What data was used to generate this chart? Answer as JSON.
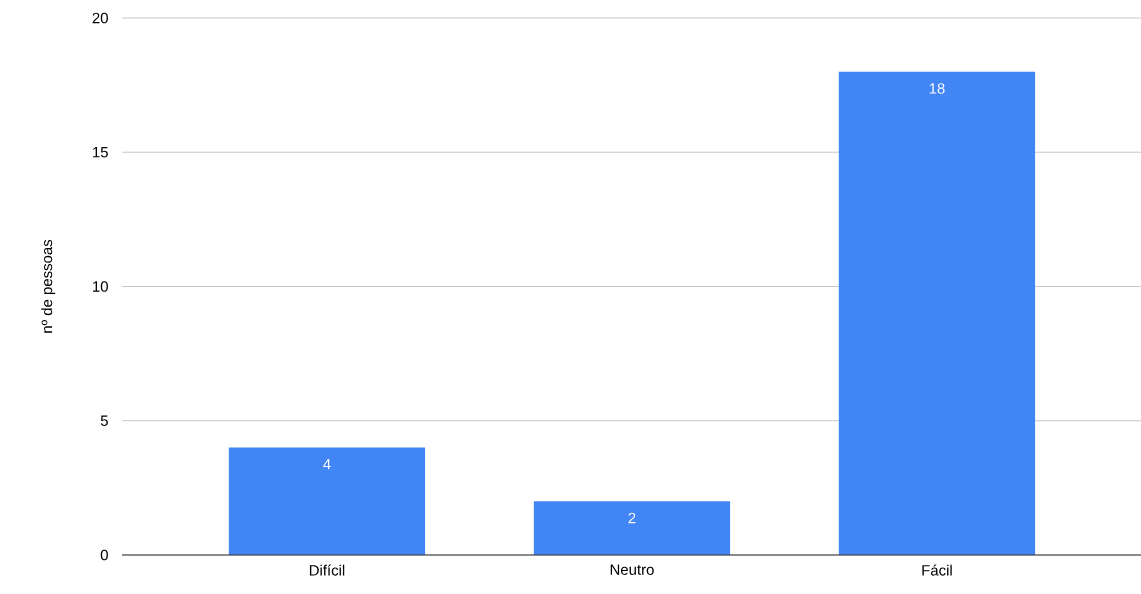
{
  "chart_data": {
    "type": "bar",
    "ylabel": "nº de pessoas",
    "categories": [
      "Difícil",
      "Neutro",
      "Fácil"
    ],
    "values": [
      4,
      2,
      18
    ],
    "color": "#4285f4",
    "ylim": [
      0,
      20
    ],
    "yticks": [
      0,
      5,
      10,
      15,
      20
    ],
    "grid": "y",
    "data_labels": true
  }
}
